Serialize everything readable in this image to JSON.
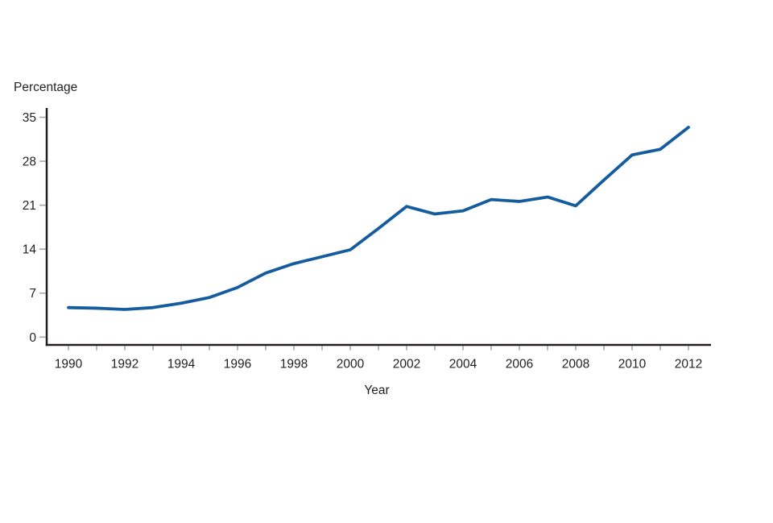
{
  "chart_data": {
    "type": "line",
    "title": "",
    "ylabel": "Percentage",
    "xlabel": "Year",
    "x": [
      1990,
      1991,
      1992,
      1993,
      1994,
      1995,
      1996,
      1997,
      1998,
      1999,
      2000,
      2001,
      2002,
      2003,
      2004,
      2005,
      2006,
      2007,
      2008,
      2009,
      2010,
      2011,
      2012
    ],
    "series": [
      {
        "name": "Percentage",
        "values": [
          4.7,
          4.6,
          4.4,
          4.7,
          5.4,
          6.3,
          7.9,
          10.2,
          11.7,
          12.8,
          13.9,
          17.3,
          20.8,
          19.6,
          20.1,
          21.9,
          21.6,
          22.3,
          20.9,
          25.0,
          29.0,
          29.9,
          33.4
        ]
      }
    ],
    "ylim": [
      0,
      35
    ],
    "yticks": [
      0,
      7,
      14,
      21,
      28,
      35
    ],
    "xticks": [
      1990,
      1991,
      1992,
      1993,
      1994,
      1995,
      1996,
      1997,
      1998,
      1999,
      2000,
      2001,
      2002,
      2003,
      2004,
      2005,
      2006,
      2007,
      2008,
      2009,
      2010,
      2011,
      2012
    ],
    "xtick_labeled_years": [
      1990,
      1992,
      1994,
      1996,
      1998,
      2000,
      2002,
      2004,
      2006,
      2008,
      2010,
      2012
    ],
    "grid": false,
    "legend": false
  },
  "colors": {
    "line": "#155c9e",
    "axis": "#231f20",
    "tick": "#a5a7aa",
    "text": "#231f20"
  }
}
